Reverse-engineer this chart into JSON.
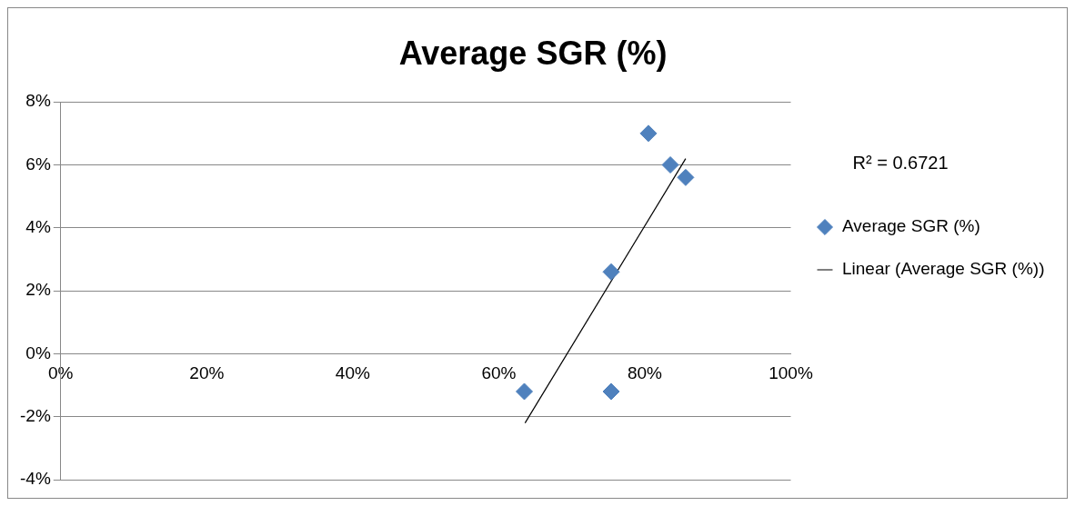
{
  "chart_data": {
    "type": "scatter",
    "title": "Average SGR (%)",
    "xlim": [
      0,
      100
    ],
    "xticks": [
      {
        "value": 0,
        "label": "0%"
      },
      {
        "value": 20,
        "label": "20%"
      },
      {
        "value": 40,
        "label": "40%"
      },
      {
        "value": 60,
        "label": "60%"
      },
      {
        "value": 80,
        "label": "80%"
      },
      {
        "value": 100,
        "label": "100%"
      }
    ],
    "ylim": [
      -4,
      8
    ],
    "yticks": [
      {
        "value": -4,
        "label": "-4%"
      },
      {
        "value": -2,
        "label": "-2%"
      },
      {
        "value": 0,
        "label": "0%"
      },
      {
        "value": 2,
        "label": "2%"
      },
      {
        "value": 4,
        "label": "4%"
      },
      {
        "value": 6,
        "label": "6%"
      },
      {
        "value": 8,
        "label": "8%"
      }
    ],
    "series": [
      {
        "name": "Average SGR (%)",
        "type": "scatter",
        "color": "#4f81bd",
        "marker": "diamond",
        "x": [
          63.5,
          75.4,
          75.4,
          80.5,
          83.5,
          85.6
        ],
        "values": [
          -1.2,
          -1.2,
          2.6,
          7.0,
          6.0,
          5.6
        ]
      },
      {
        "name": "Linear (Average SGR (%))",
        "type": "line",
        "color": "#000000",
        "marker": "none",
        "x": [
          63.6,
          85.6
        ],
        "values": [
          -2.2,
          6.2
        ]
      }
    ],
    "annotations": [
      "R² = 0.6721"
    ],
    "grid": "y",
    "legend": "right"
  }
}
